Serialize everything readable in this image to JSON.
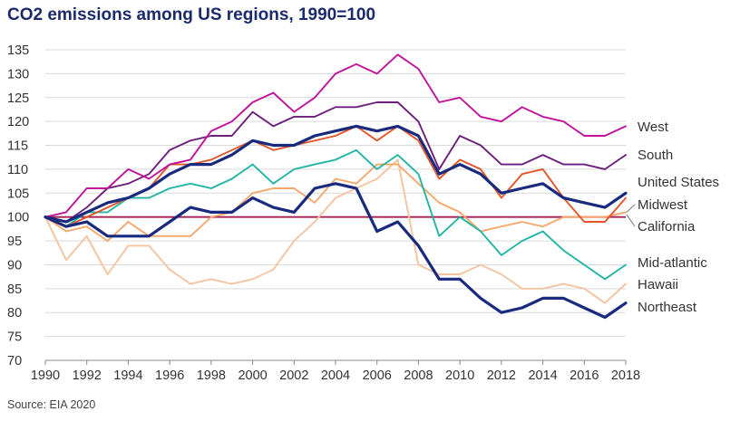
{
  "title": "CO2 emissions among US regions, 1990=100",
  "source": "Source: EIA 2020",
  "colors": {
    "West": "#c0139a",
    "South": "#6b1f7b",
    "United States": "#172a7e",
    "Midwest": "#e2562a",
    "California": "#f6a76b",
    "Mid-atlantic": "#22b5a4",
    "Hawaii": "#f6c3a0",
    "Northeast": "#172a7e",
    "baseline": "#a31f54",
    "grid": "#d9d9d9"
  },
  "chart_data": {
    "type": "line",
    "title": "CO2 emissions among US regions, 1990=100",
    "xlabel": "",
    "ylabel": "",
    "xlim": [
      1990,
      2018
    ],
    "ylim": [
      70,
      135
    ],
    "x_ticks": [
      "1990",
      "1992",
      "1994",
      "1996",
      "1998",
      "2000",
      "2002",
      "2004",
      "2006",
      "2008",
      "2010",
      "2012",
      "2014",
      "2016",
      "2018"
    ],
    "y_ticks": [
      "70",
      "75",
      "80",
      "85",
      "90",
      "95",
      "100",
      "105",
      "110",
      "115",
      "120",
      "125",
      "130",
      "135"
    ],
    "grid": "horizontal",
    "reference_line": 100,
    "x": [
      1990,
      1991,
      1992,
      1993,
      1994,
      1995,
      1996,
      1997,
      1998,
      1999,
      2000,
      2001,
      2002,
      2003,
      2004,
      2005,
      2006,
      2007,
      2008,
      2009,
      2010,
      2011,
      2012,
      2013,
      2014,
      2015,
      2016,
      2017,
      2018
    ],
    "series": [
      {
        "name": "West",
        "values": [
          100,
          101,
          106,
          106,
          110,
          108,
          111,
          112,
          118,
          120,
          124,
          126,
          122,
          125,
          130,
          132,
          130,
          134,
          131,
          124,
          125,
          121,
          120,
          123,
          121,
          120,
          117,
          117,
          119
        ]
      },
      {
        "name": "South",
        "values": [
          100,
          99,
          102,
          106,
          107,
          109,
          114,
          116,
          117,
          117,
          122,
          119,
          121,
          121,
          123,
          123,
          124,
          124,
          120,
          110,
          117,
          115,
          111,
          111,
          113,
          111,
          111,
          110,
          113
        ]
      },
      {
        "name": "United States",
        "values": [
          100,
          99,
          101,
          103,
          104,
          106,
          109,
          111,
          111,
          113,
          116,
          115,
          115,
          117,
          118,
          119,
          118,
          119,
          117,
          109,
          111,
          109,
          105,
          106,
          107,
          104,
          103,
          102,
          105
        ]
      },
      {
        "name": "Midwest",
        "values": [
          100,
          98,
          100,
          102,
          104,
          106,
          111,
          111,
          112,
          114,
          116,
          114,
          115,
          116,
          117,
          119,
          116,
          119,
          116,
          108,
          112,
          110,
          104,
          109,
          110,
          104,
          99,
          99,
          104
        ]
      },
      {
        "name": "California",
        "values": [
          100,
          97,
          98,
          95,
          99,
          96,
          96,
          96,
          100,
          101,
          105,
          106,
          106,
          103,
          108,
          107,
          111,
          111,
          107,
          103,
          101,
          97,
          98,
          99,
          98,
          100,
          100,
          100,
          101
        ]
      },
      {
        "name": "Mid-atlantic",
        "values": [
          100,
          98,
          101,
          101,
          104,
          104,
          106,
          107,
          106,
          108,
          111,
          107,
          110,
          111,
          112,
          114,
          110,
          113,
          109,
          96,
          100,
          97,
          92,
          95,
          97,
          93,
          90,
          87,
          90
        ]
      },
      {
        "name": "Hawaii",
        "values": [
          100,
          91,
          96,
          88,
          94,
          94,
          89,
          86,
          87,
          86,
          87,
          89,
          95,
          99,
          104,
          106,
          108,
          112,
          90,
          88,
          88,
          90,
          88,
          85,
          85,
          86,
          85,
          82,
          86
        ]
      },
      {
        "name": "Northeast",
        "values": [
          100,
          98,
          99,
          96,
          96,
          96,
          99,
          102,
          101,
          101,
          104,
          102,
          101,
          106,
          107,
          106,
          97,
          99,
          94,
          87,
          87,
          83,
          80,
          81,
          83,
          83,
          81,
          79,
          82
        ]
      }
    ],
    "legend": "right, labels at line ends"
  }
}
